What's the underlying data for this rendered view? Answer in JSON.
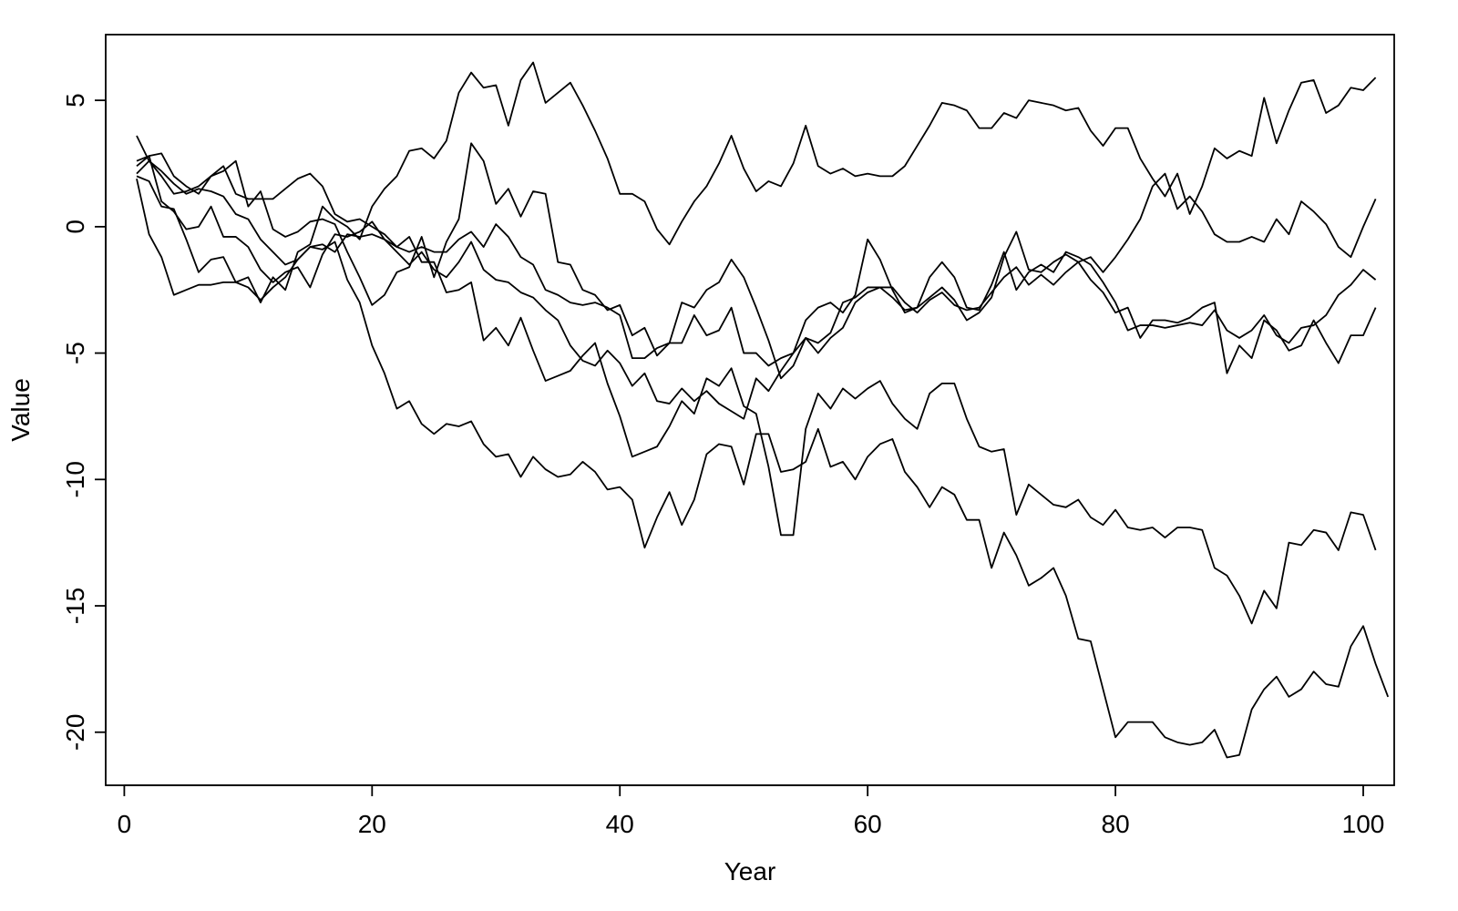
{
  "chart_data": {
    "type": "line",
    "title": "",
    "xlabel": "Year",
    "ylabel": "Value",
    "xlim": [
      -1.5,
      102.5
    ],
    "ylim": [
      -22.1,
      7.6
    ],
    "x_ticks": [
      0,
      20,
      40,
      60,
      80,
      100
    ],
    "y_ticks": [
      5,
      0,
      -5,
      -10,
      -15,
      -20
    ],
    "grid": false,
    "legend": "none",
    "line_color": "#000000",
    "x_start": 1,
    "series": [
      {
        "values": [
          2.0,
          1.8,
          0.8,
          0.7,
          -0.5,
          -1.8,
          -1.3,
          -1.2,
          -2.2,
          -2.0,
          -3.0,
          -2.0,
          -2.5,
          -1.0,
          -0.7,
          0.8,
          0.3,
          0.0,
          -0.5,
          0.8,
          1.5,
          2.0,
          3.0,
          3.1,
          2.7,
          3.4,
          5.3,
          6.1,
          5.5,
          5.6,
          4.0,
          5.8,
          6.5,
          4.9,
          5.3,
          5.7,
          4.8,
          3.8,
          2.7,
          1.3,
          1.3,
          1.0,
          -0.1,
          -0.7,
          0.2,
          1.0,
          1.6,
          2.5,
          3.6,
          2.3,
          1.4,
          1.8,
          1.6,
          2.5,
          4.0,
          2.4,
          2.1,
          2.3,
          2.0,
          2.1,
          2.0,
          2.0,
          2.4,
          3.2,
          4.0,
          4.9,
          4.8,
          4.6,
          3.9,
          3.9,
          4.5,
          4.3,
          5.0,
          4.9,
          4.8,
          4.6,
          4.7,
          3.8,
          3.2,
          3.9,
          3.9,
          2.7,
          1.9,
          1.2,
          2.1,
          0.5,
          1.6,
          3.1,
          2.7,
          3.0,
          2.8,
          5.1,
          3.3,
          4.6,
          5.7,
          5.8,
          4.5,
          4.8,
          5.5,
          5.4,
          5.9
        ]
      },
      {
        "values": [
          3.6,
          2.6,
          2.0,
          1.3,
          1.4,
          1.6,
          2.0,
          2.4,
          1.3,
          1.1,
          1.1,
          1.1,
          1.5,
          1.9,
          2.1,
          1.6,
          0.5,
          0.2,
          0.3,
          0.0,
          -0.3,
          -0.8,
          -1.0,
          -0.8,
          -1.0,
          -1.0,
          -0.5,
          -0.2,
          -0.8,
          0.1,
          -0.4,
          -1.2,
          -1.5,
          -2.5,
          -2.7,
          -3.0,
          -3.1,
          -3.0,
          -3.2,
          -3.5,
          -5.2,
          -5.2,
          -4.8,
          -4.6,
          -3.0,
          -3.2,
          -2.5,
          -2.2,
          -1.3,
          -2.0,
          -3.2,
          -4.5,
          -6.0,
          -5.5,
          -4.4,
          -4.6,
          -4.2,
          -3.0,
          -2.8,
          -2.4,
          -2.4,
          -2.8,
          -3.3,
          -3.2,
          -2.0,
          -1.4,
          -2.0,
          -3.2,
          -3.3,
          -2.3,
          -1.0,
          -2.5,
          -1.8,
          -1.5,
          -1.8,
          -1.0,
          -1.2,
          -1.5,
          -2.2,
          -3.0,
          -4.1,
          -3.9,
          -3.9,
          -4.0,
          -3.9,
          -3.8,
          -3.9,
          -3.3,
          -4.1,
          -4.4,
          -4.1,
          -3.5,
          -4.3,
          -4.6,
          -4.0,
          -3.9,
          -3.5,
          -2.7,
          -2.3,
          -1.7,
          -2.1
        ]
      },
      {
        "values": [
          2.1,
          2.6,
          2.2,
          1.7,
          1.3,
          1.5,
          1.4,
          1.2,
          0.5,
          0.3,
          -0.5,
          -1.0,
          -1.5,
          -1.3,
          -0.8,
          -0.7,
          -1.0,
          -0.3,
          -0.4,
          -0.3,
          -0.5,
          -1.0,
          -1.5,
          -1.0,
          -1.7,
          -2.0,
          -1.4,
          -0.6,
          -1.7,
          -2.1,
          -2.2,
          -2.6,
          -2.8,
          -3.3,
          -3.7,
          -4.7,
          -5.3,
          -5.5,
          -4.9,
          -5.4,
          -6.3,
          -5.8,
          -6.9,
          -7.0,
          -6.4,
          -6.9,
          -6.5,
          -7.0,
          -7.3,
          -7.6,
          -6.0,
          -6.5,
          -5.7,
          -5.0,
          -4.4,
          -5.0,
          -4.4,
          -4.0,
          -3.0,
          -2.6,
          -2.4,
          -2.4,
          -3.0,
          -3.4,
          -2.9,
          -2.6,
          -3.1,
          -3.3,
          -3.2,
          -2.6,
          -2.0,
          -1.6,
          -2.3,
          -1.9,
          -2.3,
          -1.8,
          -1.4,
          -1.2,
          -1.8,
          -1.2,
          -0.5,
          0.3,
          1.6,
          2.1,
          0.7,
          1.2,
          0.6,
          -0.3,
          -0.6,
          -0.6,
          -0.4,
          -0.6,
          0.3,
          -0.3,
          1.0,
          0.6,
          0.1,
          -0.8,
          -1.2,
          0.0,
          1.1
        ]
      },
      {
        "values": [
          1.9,
          -0.3,
          -1.2,
          -2.7,
          -2.5,
          -2.3,
          -2.3,
          -2.2,
          -2.2,
          -2.4,
          -2.9,
          -2.4,
          -2.0,
          -1.3,
          -0.8,
          -0.9,
          -0.6,
          -2.1,
          -3.0,
          -4.7,
          -5.8,
          -7.2,
          -6.9,
          -7.8,
          -8.2,
          -7.8,
          -7.9,
          -7.7,
          -8.6,
          -9.1,
          -9.0,
          -9.9,
          -9.1,
          -9.6,
          -9.9,
          -9.8,
          -9.3,
          -9.7,
          -10.4,
          -10.3,
          -10.8,
          -12.7,
          -11.5,
          -10.5,
          -11.8,
          -10.8,
          -9.0,
          -8.6,
          -8.7,
          -10.2,
          -8.2,
          -8.2,
          -9.7,
          -9.6,
          -9.3,
          -8.0,
          -9.5,
          -9.3,
          -10.0,
          -9.1,
          -8.6,
          -8.4,
          -9.7,
          -10.3,
          -11.1,
          -10.3,
          -10.6,
          -11.6,
          -11.6,
          -13.5,
          -12.1,
          -13.0,
          -14.2,
          -13.9,
          -13.5,
          -14.6,
          -16.3,
          -16.4,
          -18.3,
          -20.2,
          -19.6,
          -19.6,
          -19.6,
          -20.2,
          -20.4,
          -20.5,
          -20.4,
          -19.9,
          -21.0,
          -20.9,
          -19.1,
          -18.3,
          -17.8,
          -18.6,
          -18.3,
          -17.6,
          -18.1,
          -18.2,
          -16.6,
          -15.8,
          -17.3,
          -18.6
        ]
      },
      {
        "values": [
          2.4,
          2.8,
          2.9,
          2.0,
          1.6,
          1.3,
          2.0,
          2.2,
          2.6,
          0.8,
          1.4,
          -0.1,
          -0.4,
          -0.2,
          0.2,
          0.3,
          0.1,
          -1.0,
          -2.0,
          -3.1,
          -2.7,
          -1.8,
          -1.6,
          -0.4,
          -2.0,
          -0.6,
          0.3,
          3.3,
          2.6,
          0.9,
          1.5,
          0.4,
          1.4,
          1.3,
          -1.4,
          -1.5,
          -2.5,
          -2.7,
          -3.3,
          -3.1,
          -4.3,
          -4.0,
          -5.1,
          -4.6,
          -4.6,
          -3.5,
          -4.3,
          -4.1,
          -3.2,
          -5.0,
          -5.0,
          -5.5,
          -5.2,
          -5.0,
          -3.7,
          -3.2,
          -3.0,
          -3.4,
          -2.7,
          -0.5,
          -1.3,
          -2.5,
          -3.4,
          -3.2,
          -2.8,
          -2.4,
          -2.9,
          -3.7,
          -3.4,
          -2.8,
          -1.2,
          -0.2,
          -1.7,
          -1.8,
          -1.4,
          -1.1,
          -1.4,
          -2.1,
          -2.6,
          -3.4,
          -3.2,
          -4.4,
          -3.7,
          -3.7,
          -3.8,
          -3.6,
          -3.2,
          -3.0,
          -5.8,
          -4.7,
          -5.2,
          -3.7,
          -4.1,
          -4.9,
          -4.7,
          -3.7,
          -4.6,
          -5.4,
          -4.3,
          -4.3,
          -3.2
        ]
      },
      {
        "values": [
          2.6,
          2.8,
          1.0,
          0.6,
          -0.1,
          0.0,
          0.8,
          -0.4,
          -0.4,
          -0.8,
          -1.7,
          -2.2,
          -1.8,
          -1.6,
          -2.4,
          -1.1,
          -0.3,
          -0.4,
          -0.2,
          0.2,
          -0.5,
          -0.8,
          -0.4,
          -1.4,
          -1.4,
          -2.6,
          -2.5,
          -2.2,
          -4.5,
          -4.0,
          -4.7,
          -3.6,
          -4.9,
          -6.1,
          -5.9,
          -5.7,
          -5.1,
          -4.6,
          -6.2,
          -7.5,
          -9.1,
          -8.9,
          -8.7,
          -7.9,
          -6.9,
          -7.4,
          -6.0,
          -6.3,
          -5.6,
          -7.1,
          -7.4,
          -9.5,
          -12.2,
          -12.2,
          -8.0,
          -6.6,
          -7.2,
          -6.4,
          -6.8,
          -6.4,
          -6.1,
          -7.0,
          -7.6,
          -8.0,
          -6.6,
          -6.2,
          -6.2,
          -7.6,
          -8.7,
          -8.9,
          -8.8,
          -11.4,
          -10.2,
          -10.6,
          -11.0,
          -11.1,
          -10.8,
          -11.5,
          -11.8,
          -11.2,
          -11.9,
          -12.0,
          -11.9,
          -12.3,
          -11.9,
          -11.9,
          -12.0,
          -13.5,
          -13.8,
          -14.6,
          -15.7,
          -14.4,
          -15.1,
          -12.5,
          -12.6,
          -12.0,
          -12.1,
          -12.8,
          -11.3,
          -11.4,
          -12.8
        ]
      }
    ]
  }
}
